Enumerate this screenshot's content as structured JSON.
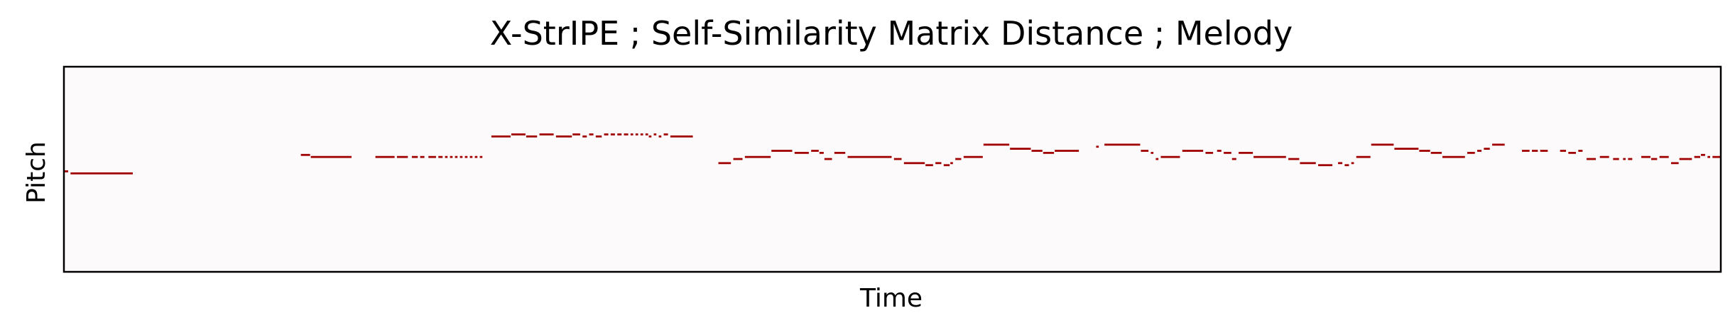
{
  "chart_data": {
    "type": "piano-roll",
    "title": "X-StrIPE ; Self-Similarity Matrix Distance ; Melody",
    "xlabel": "Time",
    "ylabel": "Pitch",
    "xticks": [],
    "yticks": [],
    "xlim": [
      0,
      1000
    ],
    "ylim": [
      0,
      100
    ],
    "grid": false,
    "legend": "none",
    "colors": {
      "background": "#fdfafc",
      "note": "#a00000",
      "frame": "#000000"
    },
    "notes": [
      [
        0,
        3,
        49
      ],
      [
        4,
        42,
        48
      ],
      [
        143,
        149,
        57
      ],
      [
        149,
        174,
        56
      ],
      [
        188,
        200,
        56
      ],
      [
        201,
        208,
        56
      ],
      [
        210,
        214,
        56
      ],
      [
        215,
        218,
        56
      ],
      [
        220,
        225,
        56
      ],
      [
        226,
        229,
        56
      ],
      [
        230,
        232,
        56
      ],
      [
        233,
        235,
        56
      ],
      [
        236,
        238,
        56
      ],
      [
        239,
        241,
        56
      ],
      [
        242,
        244,
        56
      ],
      [
        245,
        247,
        56
      ],
      [
        248,
        250,
        56
      ],
      [
        251,
        253,
        56
      ],
      [
        258,
        270,
        66
      ],
      [
        270,
        279,
        67
      ],
      [
        279,
        286,
        66
      ],
      [
        287,
        296,
        67
      ],
      [
        297,
        307,
        66
      ],
      [
        307,
        312,
        67
      ],
      [
        313,
        316,
        66
      ],
      [
        317,
        320,
        67
      ],
      [
        321,
        325,
        66
      ],
      [
        326,
        329,
        67
      ],
      [
        330,
        333,
        67
      ],
      [
        334,
        337,
        67
      ],
      [
        338,
        341,
        67
      ],
      [
        342,
        344,
        67
      ],
      [
        345,
        347,
        67
      ],
      [
        348,
        350,
        67
      ],
      [
        351,
        353,
        67
      ],
      [
        353,
        355,
        66
      ],
      [
        356,
        358,
        67
      ],
      [
        359,
        361,
        66
      ],
      [
        362,
        365,
        67
      ],
      [
        366,
        380,
        66
      ],
      [
        395,
        403,
        53
      ],
      [
        404,
        410,
        55
      ],
      [
        411,
        427,
        56
      ],
      [
        427,
        440,
        59
      ],
      [
        441,
        450,
        58
      ],
      [
        451,
        456,
        59
      ],
      [
        456,
        459,
        58
      ],
      [
        459,
        464,
        55
      ],
      [
        465,
        472,
        58
      ],
      [
        473,
        500,
        56
      ],
      [
        501,
        506,
        55
      ],
      [
        507,
        520,
        53
      ],
      [
        520,
        525,
        52
      ],
      [
        526,
        530,
        53
      ],
      [
        531,
        535,
        52
      ],
      [
        535,
        537,
        53
      ],
      [
        538,
        542,
        55
      ],
      [
        543,
        555,
        56
      ],
      [
        555,
        571,
        62
      ],
      [
        571,
        584,
        60
      ],
      [
        584,
        591,
        59
      ],
      [
        591,
        598,
        58
      ],
      [
        598,
        613,
        59
      ],
      [
        623,
        625,
        61
      ],
      [
        628,
        650,
        62
      ],
      [
        650,
        655,
        59
      ],
      [
        656,
        658,
        58
      ],
      [
        659,
        661,
        55
      ],
      [
        662,
        674,
        56
      ],
      [
        675,
        688,
        59
      ],
      [
        689,
        694,
        58
      ],
      [
        696,
        699,
        59
      ],
      [
        700,
        705,
        58
      ],
      [
        705,
        708,
        55
      ],
      [
        709,
        718,
        58
      ],
      [
        718,
        738,
        56
      ],
      [
        739,
        746,
        55
      ],
      [
        746,
        756,
        53
      ],
      [
        757,
        766,
        52
      ],
      [
        769,
        772,
        53
      ],
      [
        773,
        776,
        52
      ],
      [
        777,
        779,
        53
      ],
      [
        780,
        789,
        56
      ],
      [
        789,
        803,
        62
      ],
      [
        803,
        818,
        60
      ],
      [
        818,
        825,
        59
      ],
      [
        825,
        832,
        58
      ],
      [
        832,
        846,
        56
      ],
      [
        847,
        852,
        58
      ],
      [
        853,
        856,
        59
      ],
      [
        857,
        861,
        60
      ],
      [
        862,
        870,
        62
      ],
      [
        880,
        885,
        59
      ],
      [
        886,
        890,
        59
      ],
      [
        891,
        896,
        59
      ],
      [
        903,
        907,
        59
      ],
      [
        908,
        913,
        58
      ],
      [
        914,
        917,
        59
      ],
      [
        919,
        925,
        55
      ],
      [
        927,
        933,
        56
      ],
      [
        935,
        939,
        55
      ],
      [
        941,
        943,
        55
      ],
      [
        944,
        947,
        55
      ],
      [
        952,
        958,
        56
      ],
      [
        958,
        962,
        55
      ],
      [
        963,
        969,
        56
      ],
      [
        970,
        975,
        53
      ],
      [
        975,
        983,
        55
      ],
      [
        984,
        988,
        56
      ],
      [
        988,
        991,
        57
      ],
      [
        992,
        994,
        56
      ],
      [
        995,
        1000,
        56
      ]
    ]
  }
}
